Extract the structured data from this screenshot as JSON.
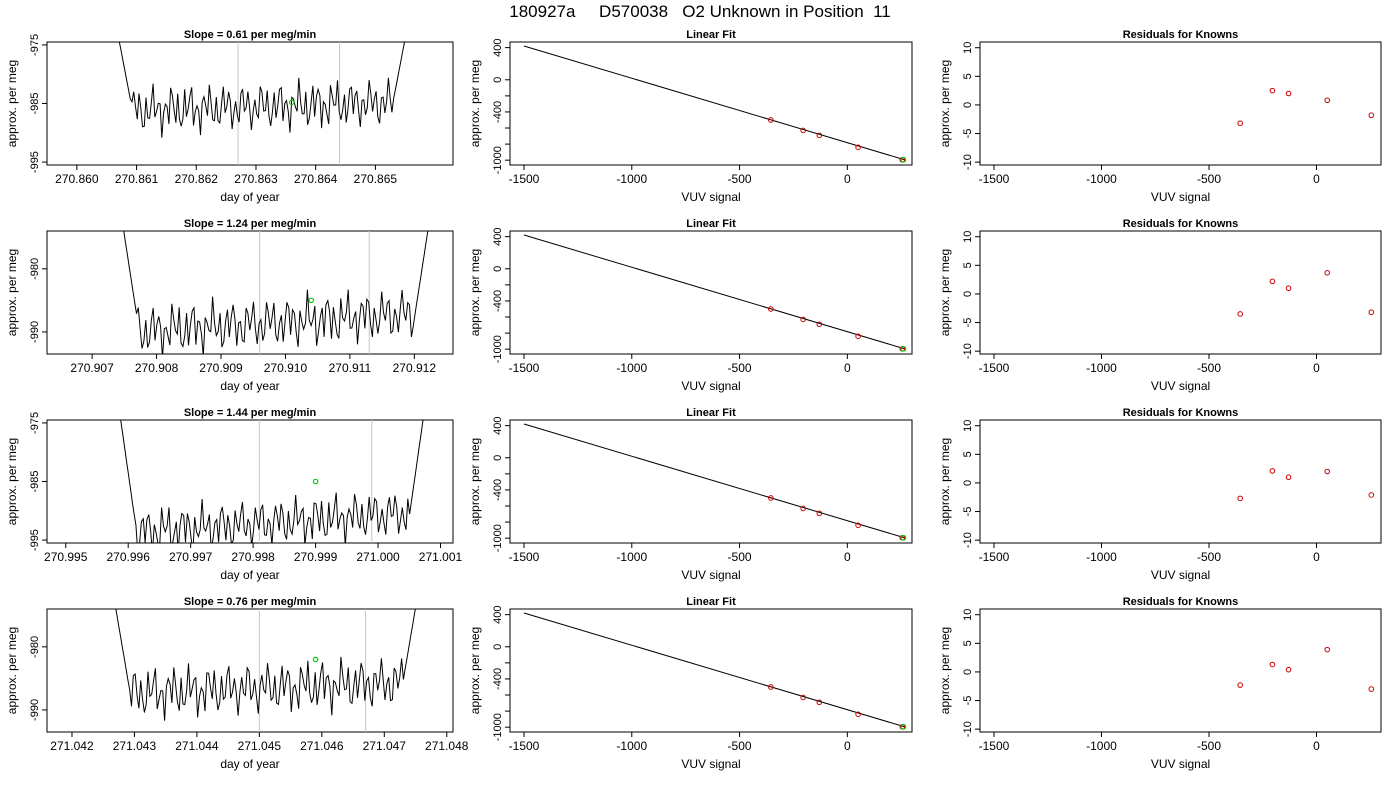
{
  "title": "180927a     D570038   O2 Unknown in Position  11",
  "colors": {
    "trace": "#000000",
    "marker": "#00cc00",
    "vline": "#c8c8c8",
    "points": "#cc0000",
    "axis": "#000000"
  },
  "rows": [
    {
      "time": {
        "title": "Slope =  0.61  per meg/min",
        "xlabel": "day of year",
        "ylabel": "approx. per meg",
        "xlim": [
          270.8595,
          270.8663
        ],
        "ylim": [
          -995.5,
          -974.5
        ],
        "xticks": [
          "270.860",
          "270.861",
          "270.862",
          "270.863",
          "270.864",
          "270.865"
        ],
        "yticks": [
          "-975",
          "-985",
          "-995"
        ],
        "x_start": 270.8606,
        "x_end": 270.8656,
        "base": -985.5,
        "vlines": [
          270.8627,
          270.8644
        ],
        "marker": [
          270.8636,
          -984.8
        ]
      }
    },
    {
      "time": {
        "title": "Slope =  1.24  per meg/min",
        "xlabel": "day of year",
        "ylabel": "approx. per meg",
        "xlim": [
          270.9063,
          270.9126
        ],
        "ylim": [
          -993.5,
          -974.0
        ],
        "xticks": [
          "270.907",
          "270.908",
          "270.909",
          "270.910",
          "270.911",
          "270.912"
        ],
        "yticks": [
          "-980",
          "-990"
        ],
        "x_start": 270.9074,
        "x_end": 270.9123,
        "base": -988.5,
        "vlines": [
          270.9096,
          270.9113
        ],
        "marker": [
          270.9104,
          -985.0
        ]
      }
    },
    {
      "time": {
        "title": "Slope =  1.44  per meg/min",
        "xlabel": "day of year",
        "ylabel": "approx. per meg",
        "xlim": [
          270.9947,
          271.0012
        ],
        "ylim": [
          -995.5,
          -974.5
        ],
        "xticks": [
          "270.995",
          "270.996",
          "270.997",
          "270.998",
          "270.999",
          "271.000",
          "271.001"
        ],
        "yticks": [
          "-975",
          "-985",
          "-995"
        ],
        "x_start": 270.9958,
        "x_end": 271.0008,
        "base": -992.0,
        "vlines": [
          270.9981,
          270.9999
        ],
        "marker": [
          270.999,
          -985.0
        ]
      }
    },
    {
      "time": {
        "title": "Slope =  0.76  per meg/min",
        "xlabel": "day of year",
        "ylabel": "approx. per meg",
        "xlim": [
          271.0416,
          271.0481
        ],
        "ylim": [
          -993.5,
          -974.0
        ],
        "xticks": [
          "271.042",
          "271.043",
          "271.044",
          "271.045",
          "271.046",
          "271.047",
          "271.048"
        ],
        "yticks": [
          "-980",
          "-990"
        ],
        "x_start": 271.0426,
        "x_end": 271.0476,
        "base": -986.5,
        "vlines": [
          271.045,
          271.0467
        ],
        "marker": [
          271.0459,
          -982.0
        ]
      }
    }
  ],
  "fit": {
    "title": "Linear Fit",
    "xlabel": "VUV signal",
    "ylabel": "approx. per meg",
    "xlim": [
      -1565,
      300
    ],
    "ylim": [
      -1060,
      470
    ],
    "xticks": [
      -1500,
      -1000,
      -500,
      0
    ],
    "yticks": [
      400,
      0,
      -400,
      -1000
    ],
    "line": [
      [
        -1500,
        420
      ],
      [
        265,
        -995
      ]
    ],
    "points": [
      [
        -355,
        -500
      ],
      [
        -205,
        -630
      ],
      [
        -130,
        -690
      ],
      [
        50,
        -840
      ],
      [
        255,
        -995
      ]
    ],
    "unknown": [
      260,
      -995
    ]
  },
  "resid": {
    "title": "Residuals for Knowns",
    "xlabel": "VUV signal",
    "ylabel": "approx. per meg",
    "xlim": [
      -1565,
      300
    ],
    "ylim": [
      -10.5,
      11
    ],
    "xticks": [
      -1500,
      -1000,
      -500,
      0
    ],
    "yticks": [
      10,
      5,
      0,
      -5,
      -10
    ],
    "x": [
      -355,
      -205,
      -130,
      50,
      255
    ]
  },
  "chart_data": [
    {
      "type": "line",
      "title": "Slope =  0.61  per meg/min",
      "xlabel": "day of year",
      "ylabel": "approx. per meg",
      "xlim": [
        270.8595,
        270.8663
      ],
      "ylim": [
        -995.5,
        -974.5
      ]
    },
    {
      "type": "scatter",
      "title": "Linear Fit",
      "xlabel": "VUV signal",
      "ylabel": "approx. per meg",
      "x": [
        -355,
        -205,
        -130,
        50,
        255
      ],
      "y": [
        -500,
        -630,
        -690,
        -840,
        -995
      ]
    },
    {
      "type": "scatter",
      "title": "Residuals for Knowns",
      "xlabel": "VUV signal",
      "ylabel": "approx. per meg",
      "x": [
        -355,
        -205,
        -130,
        50,
        255
      ],
      "y": [
        -3.2,
        2.5,
        2.0,
        0.8,
        -1.8
      ]
    },
    {
      "type": "line",
      "title": "Slope =  1.24  per meg/min",
      "xlabel": "day of year",
      "ylabel": "approx. per meg",
      "xlim": [
        270.9063,
        270.9126
      ],
      "ylim": [
        -993.5,
        -974.0
      ]
    },
    {
      "type": "scatter",
      "title": "Linear Fit",
      "xlabel": "VUV signal",
      "ylabel": "approx. per meg",
      "x": [
        -355,
        -205,
        -130,
        50,
        255
      ],
      "y": [
        -500,
        -630,
        -690,
        -840,
        -995
      ]
    },
    {
      "type": "scatter",
      "title": "Residuals for Knowns",
      "xlabel": "VUV signal",
      "ylabel": "approx. per meg",
      "x": [
        -355,
        -205,
        -130,
        50,
        255
      ],
      "y": [
        -3.5,
        2.2,
        1.0,
        3.7,
        -3.2
      ]
    },
    {
      "type": "line",
      "title": "Slope =  1.44  per meg/min",
      "xlabel": "day of year",
      "ylabel": "approx. per meg",
      "xlim": [
        270.9947,
        271.0012
      ],
      "ylim": [
        -995.5,
        -974.5
      ]
    },
    {
      "type": "scatter",
      "title": "Linear Fit",
      "xlabel": "VUV signal",
      "ylabel": "approx. per meg",
      "x": [
        -355,
        -205,
        -130,
        50,
        255
      ],
      "y": [
        -500,
        -630,
        -690,
        -840,
        -995
      ]
    },
    {
      "type": "scatter",
      "title": "Residuals for Knowns",
      "xlabel": "VUV signal",
      "ylabel": "approx. per meg",
      "x": [
        -355,
        -205,
        -130,
        50,
        255
      ],
      "y": [
        -2.7,
        2.1,
        1.0,
        2.0,
        -2.1
      ]
    },
    {
      "type": "line",
      "title": "Slope =  0.76  per meg/min",
      "xlabel": "day of year",
      "ylabel": "approx. per meg",
      "xlim": [
        271.0416,
        271.0481
      ],
      "ylim": [
        -993.5,
        -974.0
      ]
    },
    {
      "type": "scatter",
      "title": "Linear Fit",
      "xlabel": "VUV signal",
      "ylabel": "approx. per meg",
      "x": [
        -355,
        -205,
        -130,
        50,
        255
      ],
      "y": [
        -500,
        -630,
        -690,
        -840,
        -995
      ]
    },
    {
      "type": "scatter",
      "title": "Residuals for Knowns",
      "xlabel": "VUV signal",
      "ylabel": "approx. per meg",
      "x": [
        -355,
        -205,
        -130,
        50,
        255
      ],
      "y": [
        -2.3,
        1.3,
        0.4,
        3.9,
        -3.0
      ]
    }
  ]
}
